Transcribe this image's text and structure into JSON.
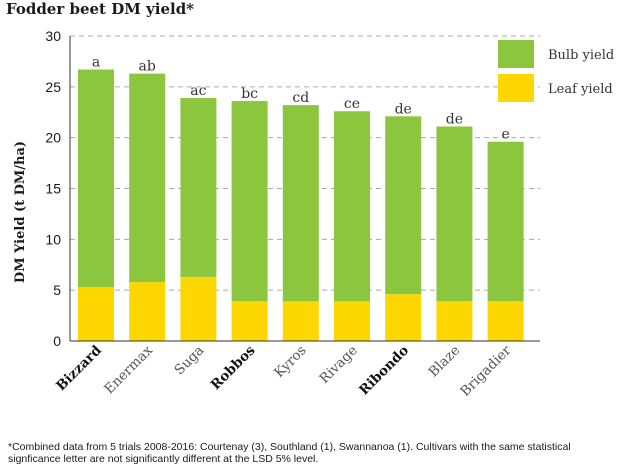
{
  "title": "Fodder beet DM yield*",
  "footnote": "*Combined data from 5 trials 2008-2016: Courtenay (3), Southland (1), Swannanoa (1). Cultivars with the same statistical signficance letter are not significantly different at the LSD 5% level.",
  "colors": {
    "bulb": "#8cc63f",
    "leaf": "#ffd700",
    "grid": "#aaaaaa",
    "axis": "#333333"
  },
  "chart_data": {
    "type": "bar",
    "stacked": true,
    "title": "Fodder beet DM yield*",
    "xlabel": "",
    "ylabel": "DM Yield (t DM/ha)",
    "ylim": [
      0,
      30
    ],
    "yticks": [
      0,
      5,
      10,
      15,
      20,
      25,
      30
    ],
    "grid": true,
    "legend_position": "top-right",
    "categories": [
      "Bizzard",
      "Enermax",
      "Suga",
      "Robbos",
      "Kyros",
      "Rivage",
      "Ribondo",
      "Blaze",
      "Brigadier"
    ],
    "bold_categories": [
      "Bizzard",
      "Robbos",
      "Ribondo"
    ],
    "series": [
      {
        "name": "Leaf yield",
        "color": "#ffd700",
        "values": [
          5.3,
          5.8,
          6.3,
          3.9,
          3.9,
          3.9,
          4.6,
          3.9,
          3.9
        ]
      },
      {
        "name": "Bulb yield",
        "color": "#8cc63f",
        "values": [
          21.4,
          20.5,
          17.6,
          19.7,
          19.3,
          18.7,
          17.5,
          17.2,
          15.7
        ]
      }
    ],
    "totals": [
      26.7,
      26.3,
      23.9,
      23.6,
      23.2,
      22.6,
      22.1,
      21.1,
      19.6
    ],
    "significance_letters": [
      "a",
      "ab",
      "ac",
      "bc",
      "cd",
      "ce",
      "de",
      "de",
      "e"
    ],
    "legend": [
      {
        "label": "Bulb yield",
        "color": "#8cc63f"
      },
      {
        "label": "Leaf yield",
        "color": "#ffd700"
      }
    ]
  }
}
